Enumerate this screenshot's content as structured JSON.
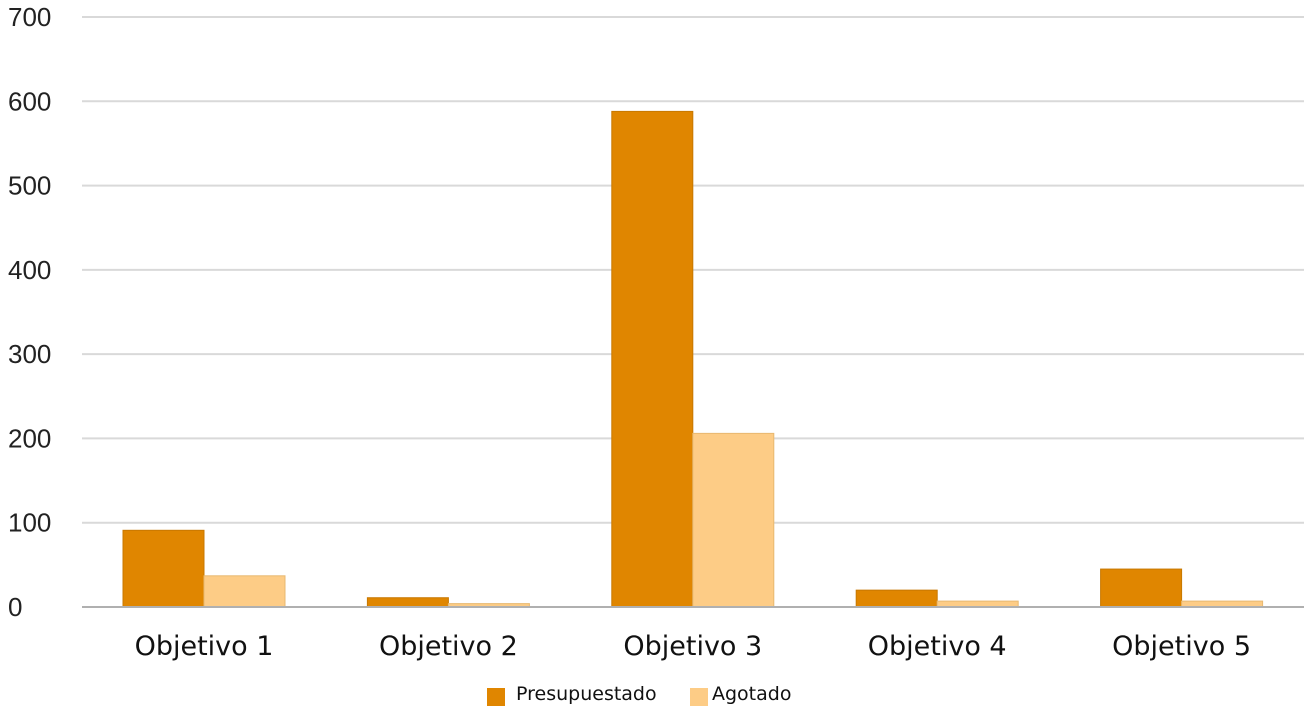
{
  "chart_data": {
    "type": "bar",
    "title": "",
    "xlabel": "",
    "ylabel": "",
    "ylim": [
      0,
      700
    ],
    "yticks": [
      0,
      100,
      200,
      300,
      400,
      500,
      600,
      700
    ],
    "grid": true,
    "legend_position": "bottom",
    "categories": [
      "Objetivo 1",
      "Objetivo 2",
      "Objetivo 3",
      "Objetivo 4",
      "Objetivo 5"
    ],
    "series": [
      {
        "name": "Presupuestado",
        "color": "#E08600",
        "values": [
          91,
          11,
          588,
          20,
          45
        ]
      },
      {
        "name": "Agotado",
        "color": "#FDCC86",
        "values": [
          37,
          4,
          206,
          7,
          7
        ]
      }
    ]
  }
}
